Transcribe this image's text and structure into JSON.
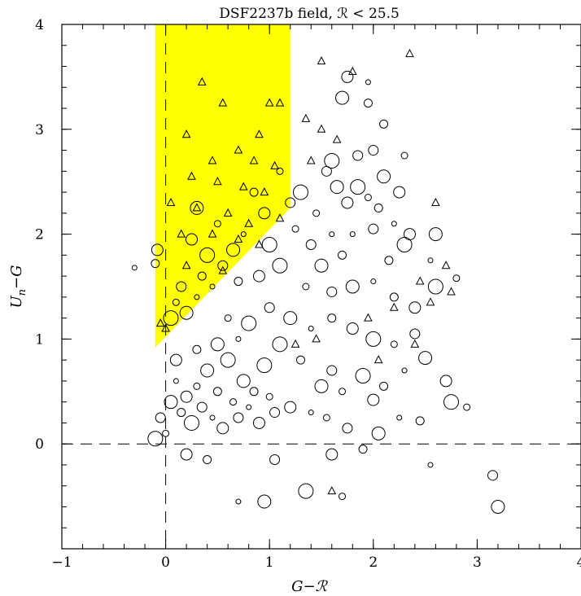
{
  "chart_data": {
    "type": "scatter",
    "title": "DSF2237b field,  ℛ < 25.5",
    "xlabel": "G−ℛ",
    "ylabel": "U_n−G",
    "xlim": [
      -1,
      4
    ],
    "ylim": [
      -1,
      4
    ],
    "x_ticks": [
      -1,
      0,
      1,
      2,
      3,
      4
    ],
    "x_tick_labels": [
      "−1",
      "0",
      "1",
      "2",
      "3",
      "4"
    ],
    "y_ticks": [
      0,
      1,
      2,
      3,
      4
    ],
    "y_tick_labels": [
      "0",
      "1",
      "2",
      "3",
      "4"
    ],
    "reference_lines": {
      "x": 0,
      "y": 0,
      "style": "dashed"
    },
    "selection_region": {
      "color": "#ffff00",
      "polygon": [
        [
          -0.1,
          0.92
        ],
        [
          -0.1,
          4.0
        ],
        [
          1.2,
          4.0
        ],
        [
          1.2,
          2.25
        ],
        [
          -0.1,
          0.92
        ]
      ]
    },
    "series": [
      {
        "marker": "circle",
        "points": [
          [
            -0.3,
            1.68
          ],
          [
            -0.1,
            1.72
          ],
          [
            -0.08,
            1.85
          ],
          [
            0.05,
            1.2
          ],
          [
            0.1,
            1.35
          ],
          [
            0.15,
            1.5
          ],
          [
            0.2,
            1.25
          ],
          [
            0.3,
            1.4
          ],
          [
            0.35,
            1.6
          ],
          [
            0.25,
            1.95
          ],
          [
            0.4,
            1.8
          ],
          [
            0.5,
            2.1
          ],
          [
            0.55,
            1.7
          ],
          [
            0.65,
            1.85
          ],
          [
            0.75,
            2.0
          ],
          [
            0.85,
            2.4
          ],
          [
            0.95,
            2.2
          ],
          [
            1.0,
            1.9
          ],
          [
            1.1,
            2.6
          ],
          [
            1.2,
            2.3
          ],
          [
            0.3,
            2.25
          ],
          [
            0.45,
            1.5
          ],
          [
            0.7,
            1.55
          ],
          [
            0.9,
            1.6
          ],
          [
            1.1,
            1.7
          ],
          [
            1.25,
            2.05
          ],
          [
            1.4,
            1.9
          ],
          [
            1.5,
            1.7
          ],
          [
            1.6,
            2.0
          ],
          [
            1.7,
            1.8
          ],
          [
            1.75,
            2.3
          ],
          [
            1.85,
            2.45
          ],
          [
            1.95,
            2.35
          ],
          [
            2.0,
            2.05
          ],
          [
            2.1,
            2.55
          ],
          [
            2.2,
            2.1
          ],
          [
            2.15,
            1.75
          ],
          [
            2.35,
            2.0
          ],
          [
            1.3,
            2.4
          ],
          [
            1.45,
            2.2
          ],
          [
            1.55,
            2.6
          ],
          [
            1.65,
            2.45
          ],
          [
            1.8,
            2.0
          ],
          [
            2.05,
            2.25
          ],
          [
            2.25,
            2.4
          ],
          [
            2.3,
            1.9
          ],
          [
            1.35,
            1.5
          ],
          [
            1.6,
            1.45
          ],
          [
            1.8,
            1.5
          ],
          [
            2.0,
            1.55
          ],
          [
            2.2,
            1.4
          ],
          [
            2.4,
            1.3
          ],
          [
            2.6,
            1.5
          ],
          [
            2.8,
            1.58
          ],
          [
            1.0,
            1.3
          ],
          [
            1.2,
            1.2
          ],
          [
            1.4,
            1.1
          ],
          [
            1.6,
            1.2
          ],
          [
            1.8,
            1.1
          ],
          [
            2.0,
            1.0
          ],
          [
            2.2,
            0.95
          ],
          [
            2.4,
            1.05
          ],
          [
            2.5,
            0.82
          ],
          [
            2.3,
            0.7
          ],
          [
            2.1,
            0.55
          ],
          [
            2.0,
            0.42
          ],
          [
            1.9,
            0.65
          ],
          [
            1.7,
            0.5
          ],
          [
            1.6,
            0.7
          ],
          [
            1.5,
            0.55
          ],
          [
            1.4,
            0.3
          ],
          [
            1.3,
            0.8
          ],
          [
            1.2,
            0.35
          ],
          [
            1.1,
            0.95
          ],
          [
            1.55,
            0.25
          ],
          [
            1.75,
            0.15
          ],
          [
            2.05,
            0.1
          ],
          [
            2.25,
            0.25
          ],
          [
            2.45,
            0.22
          ],
          [
            2.7,
            0.6
          ],
          [
            2.75,
            0.4
          ],
          [
            2.9,
            0.35
          ],
          [
            3.15,
            -0.3
          ],
          [
            3.2,
            -0.6
          ],
          [
            2.55,
            -0.2
          ],
          [
            1.9,
            -0.05
          ],
          [
            1.6,
            -0.1
          ],
          [
            1.35,
            -0.45
          ],
          [
            1.7,
            -0.5
          ],
          [
            1.05,
            -0.15
          ],
          [
            0.95,
            -0.55
          ],
          [
            0.7,
            -0.55
          ],
          [
            0.4,
            -0.15
          ],
          [
            0.2,
            -0.1
          ],
          [
            -0.1,
            0.05
          ],
          [
            0.0,
            0.1
          ],
          [
            -0.05,
            0.25
          ],
          [
            0.05,
            0.4
          ],
          [
            0.1,
            0.6
          ],
          [
            0.15,
            0.3
          ],
          [
            0.2,
            0.45
          ],
          [
            0.25,
            0.2
          ],
          [
            0.3,
            0.55
          ],
          [
            0.35,
            0.35
          ],
          [
            0.4,
            0.7
          ],
          [
            0.45,
            0.25
          ],
          [
            0.5,
            0.5
          ],
          [
            0.55,
            0.15
          ],
          [
            0.6,
            0.8
          ],
          [
            0.65,
            0.4
          ],
          [
            0.7,
            0.25
          ],
          [
            0.75,
            0.6
          ],
          [
            0.8,
            0.35
          ],
          [
            0.85,
            0.5
          ],
          [
            0.9,
            0.2
          ],
          [
            0.95,
            0.75
          ],
          [
            1.0,
            0.45
          ],
          [
            1.05,
            0.3
          ],
          [
            0.5,
            0.95
          ],
          [
            0.7,
            1.0
          ],
          [
            0.3,
            0.9
          ],
          [
            0.1,
            0.8
          ],
          [
            0.8,
            1.15
          ],
          [
            0.6,
            1.2
          ],
          [
            1.85,
            2.75
          ],
          [
            1.7,
            3.3
          ],
          [
            1.95,
            3.45
          ],
          [
            2.1,
            3.05
          ],
          [
            1.75,
            3.5
          ],
          [
            1.6,
            2.7
          ],
          [
            2.3,
            2.75
          ],
          [
            2.0,
            2.8
          ],
          [
            2.6,
            2.0
          ],
          [
            2.55,
            1.75
          ],
          [
            1.95,
            3.25
          ]
        ]
      },
      {
        "marker": "triangle",
        "points": [
          [
            0.35,
            3.45
          ],
          [
            0.55,
            3.25
          ],
          [
            1.0,
            3.25
          ],
          [
            1.1,
            3.25
          ],
          [
            0.9,
            2.95
          ],
          [
            0.7,
            2.8
          ],
          [
            0.2,
            2.95
          ],
          [
            0.45,
            2.7
          ],
          [
            0.85,
            2.7
          ],
          [
            1.05,
            2.65
          ],
          [
            0.25,
            2.55
          ],
          [
            0.5,
            2.5
          ],
          [
            0.75,
            2.45
          ],
          [
            0.95,
            2.4
          ],
          [
            0.05,
            2.3
          ],
          [
            0.3,
            2.25
          ],
          [
            0.6,
            2.2
          ],
          [
            0.8,
            2.1
          ],
          [
            1.1,
            2.15
          ],
          [
            0.15,
            2.0
          ],
          [
            0.45,
            2.0
          ],
          [
            0.7,
            1.95
          ],
          [
            0.9,
            1.9
          ],
          [
            0.2,
            1.7
          ],
          [
            0.55,
            1.65
          ],
          [
            1.5,
            3.65
          ],
          [
            2.35,
            3.72
          ],
          [
            1.8,
            3.55
          ],
          [
            1.5,
            3.0
          ],
          [
            1.35,
            3.1
          ],
          [
            1.65,
            2.9
          ],
          [
            1.4,
            2.7
          ],
          [
            2.6,
            2.3
          ],
          [
            2.7,
            1.7
          ],
          [
            2.45,
            1.55
          ],
          [
            2.75,
            1.45
          ],
          [
            2.55,
            1.35
          ],
          [
            2.2,
            1.3
          ],
          [
            2.4,
            0.95
          ],
          [
            2.05,
            0.8
          ],
          [
            1.95,
            1.2
          ],
          [
            1.45,
            1.0
          ],
          [
            1.25,
            0.95
          ],
          [
            0.0,
            1.1
          ],
          [
            -0.05,
            1.15
          ],
          [
            1.6,
            -0.45
          ]
        ]
      }
    ]
  }
}
